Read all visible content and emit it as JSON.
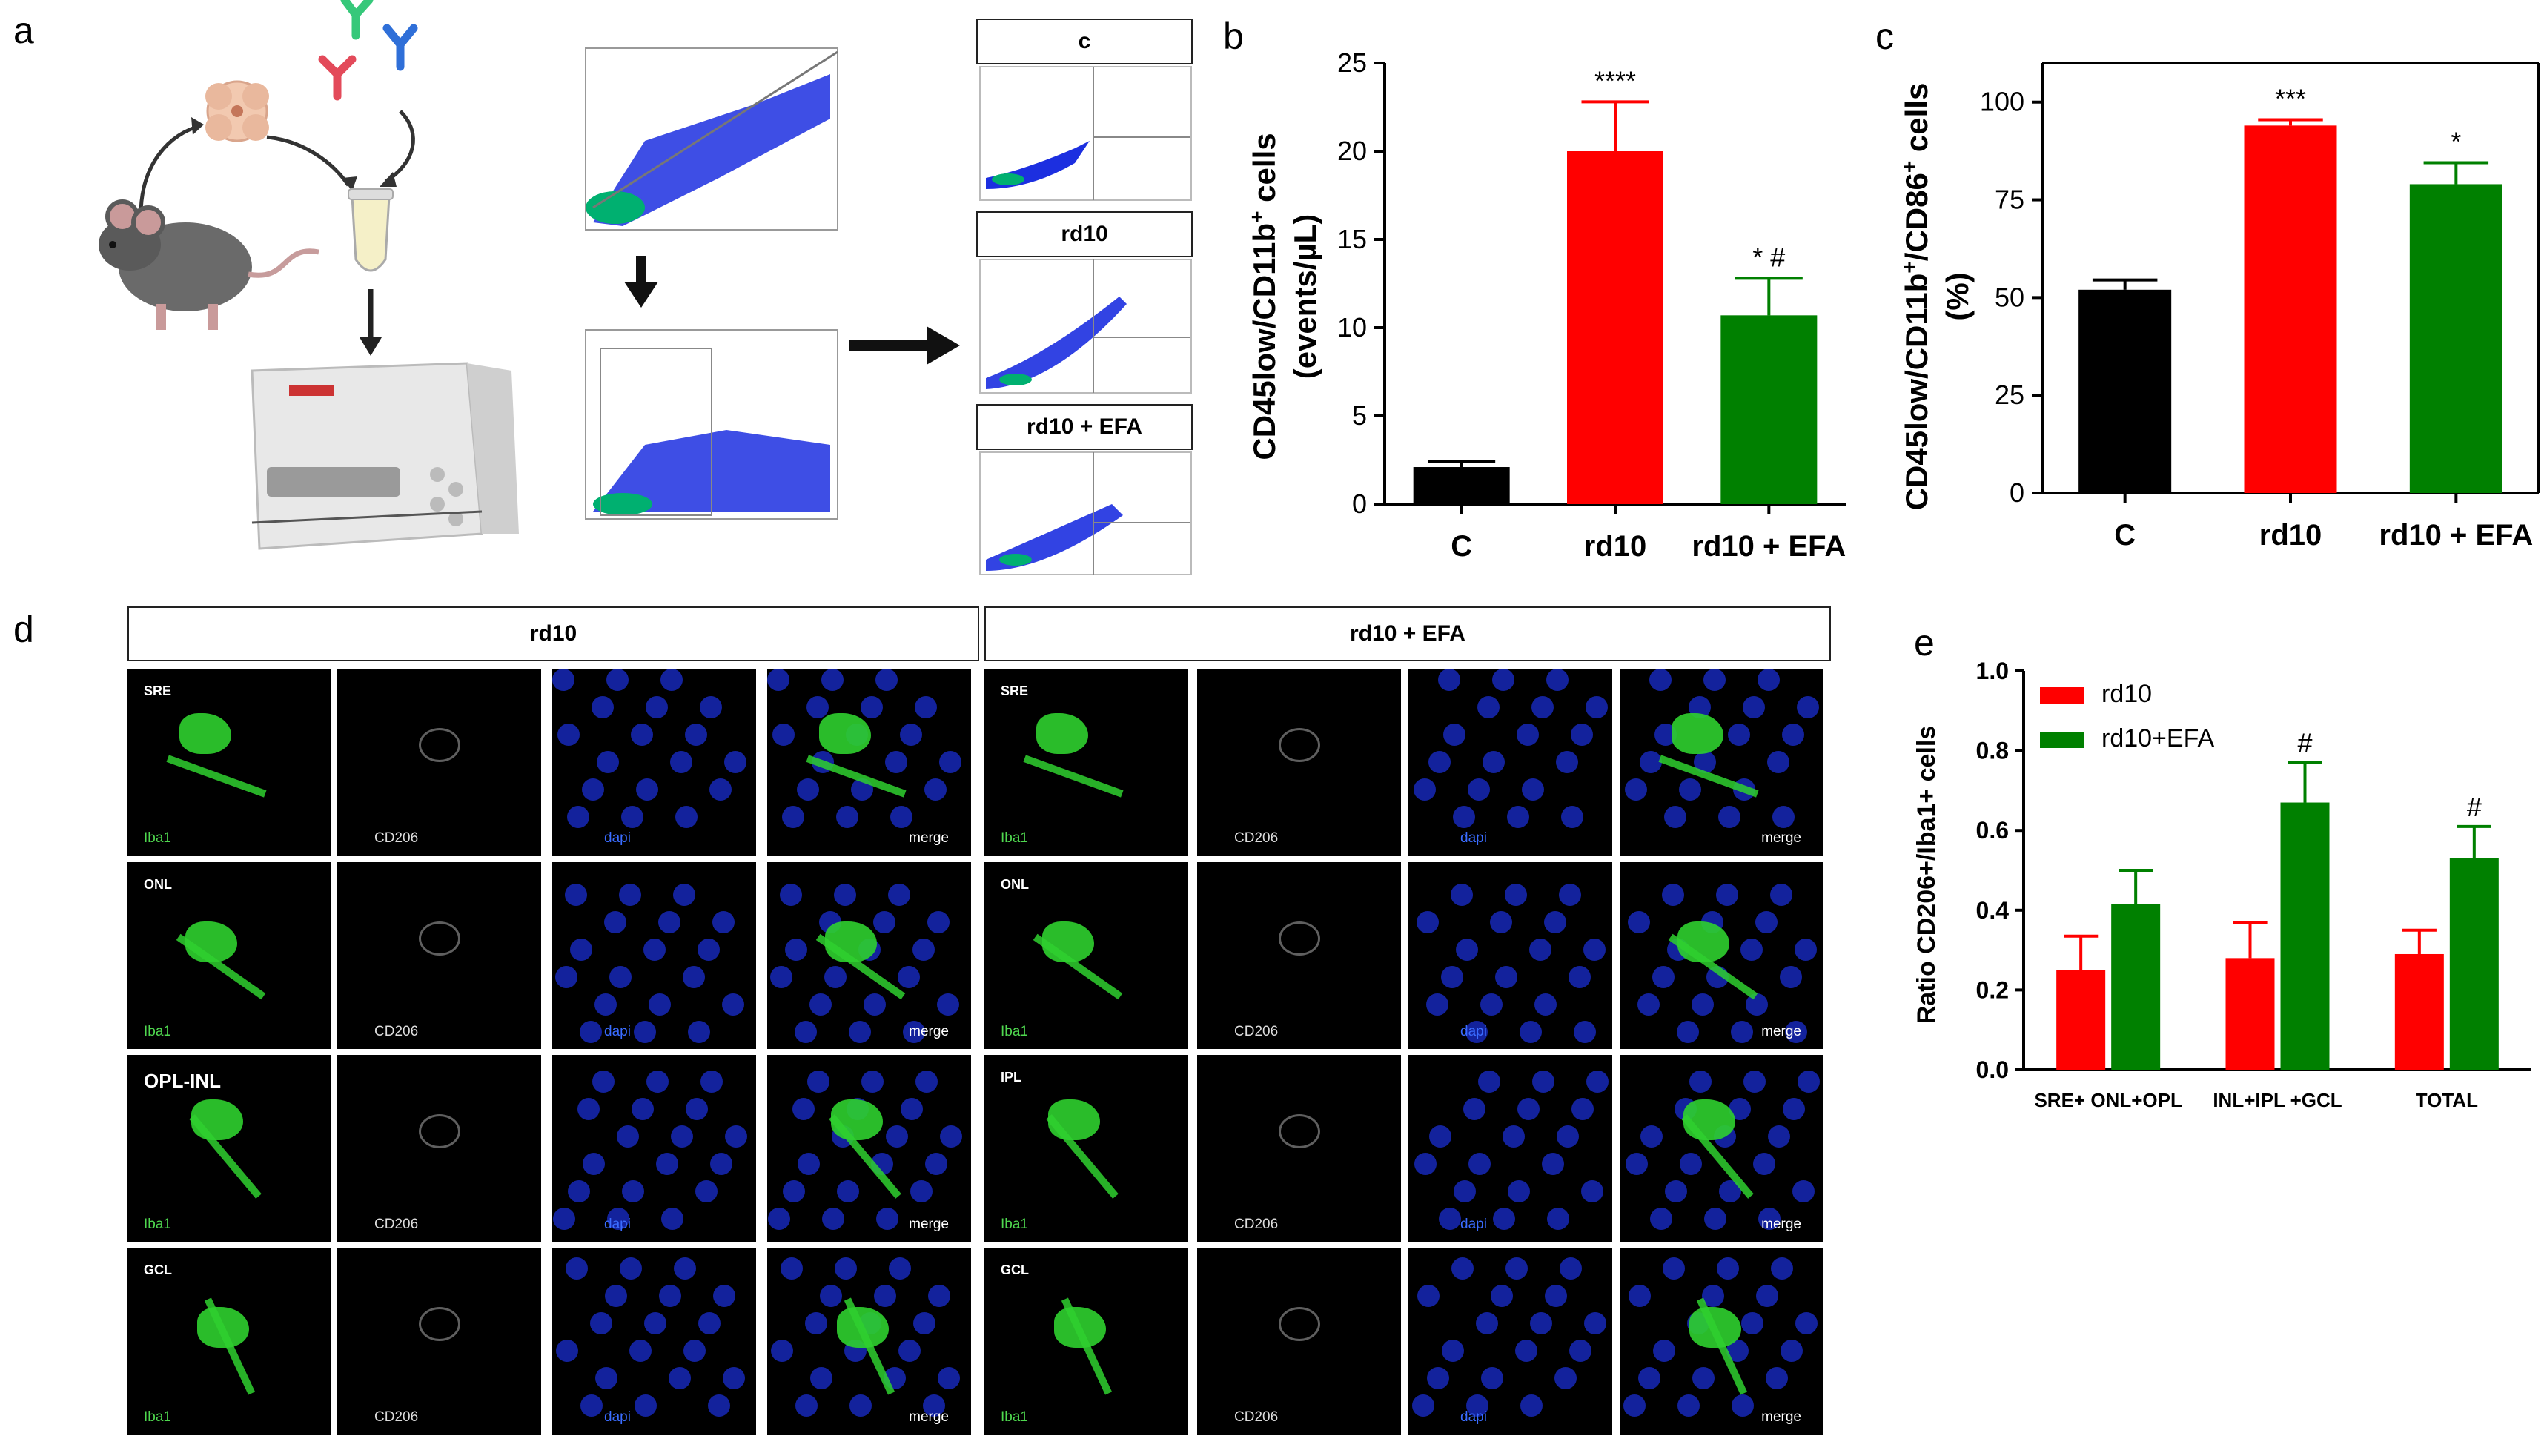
{
  "panel_letters": {
    "a": "a",
    "b": "b",
    "c": "c",
    "d": "d",
    "e": "e"
  },
  "panel_a": {
    "flow_headers": [
      "c",
      "rd10",
      "rd10 + EFA"
    ]
  },
  "panel_d": {
    "groups": [
      "rd10",
      "rd10 + EFA"
    ],
    "rows_left": [
      "SRE",
      "ONL",
      "OPL-INL",
      "GCL"
    ],
    "rows_right": [
      "SRE",
      "ONL",
      "IPL",
      "GCL"
    ],
    "channels": [
      "Iba1",
      "CD206",
      "dapi",
      "merge"
    ]
  },
  "colors": {
    "control": "#000000",
    "rd10": "#ff0000",
    "efa": "#008000"
  },
  "chart_data": [
    {
      "id": "b",
      "type": "bar",
      "categories": [
        "C",
        "rd10",
        "rd10 + EFA"
      ],
      "values": [
        2.1,
        20.0,
        10.7
      ],
      "errors": [
        0.3,
        2.8,
        2.1
      ],
      "annotations": [
        "",
        "****",
        "* #"
      ],
      "ylabel": "CD45low/CD11b+ cells (events/µL)",
      "ylim": [
        0,
        25
      ],
      "yticks": [
        0,
        5,
        10,
        15,
        20,
        25
      ]
    },
    {
      "id": "c",
      "type": "bar",
      "categories": [
        "C",
        "rd10",
        "rd10 + EFA"
      ],
      "values": [
        52,
        94,
        79
      ],
      "errors": [
        2.5,
        1.5,
        5.5
      ],
      "annotations": [
        "",
        "***",
        "*"
      ],
      "ylabel": "CD45low/CD11b+/CD86+ cells (%)",
      "ylim": [
        0,
        110
      ],
      "yticks": [
        0,
        25,
        50,
        75,
        100
      ]
    },
    {
      "id": "e",
      "type": "bar",
      "categories": [
        "SRE+ ONL+OPL",
        "INL+IPL +GCL",
        "TOTAL"
      ],
      "series": [
        {
          "name": "rd10",
          "values": [
            0.25,
            0.28,
            0.29
          ],
          "errors": [
            0.085,
            0.09,
            0.06
          ]
        },
        {
          "name": "rd10+EFA",
          "values": [
            0.415,
            0.67,
            0.53
          ],
          "errors": [
            0.085,
            0.1,
            0.08
          ]
        }
      ],
      "annotations": [
        "",
        "#",
        "#"
      ],
      "ylabel": "Ratio CD206+/Iba1+ cells",
      "ylim": [
        0,
        1.0
      ],
      "yticks": [
        "0.0",
        "0.2",
        "0.4",
        "0.6",
        "0.8",
        "1.0"
      ],
      "legend": "top-left"
    }
  ]
}
